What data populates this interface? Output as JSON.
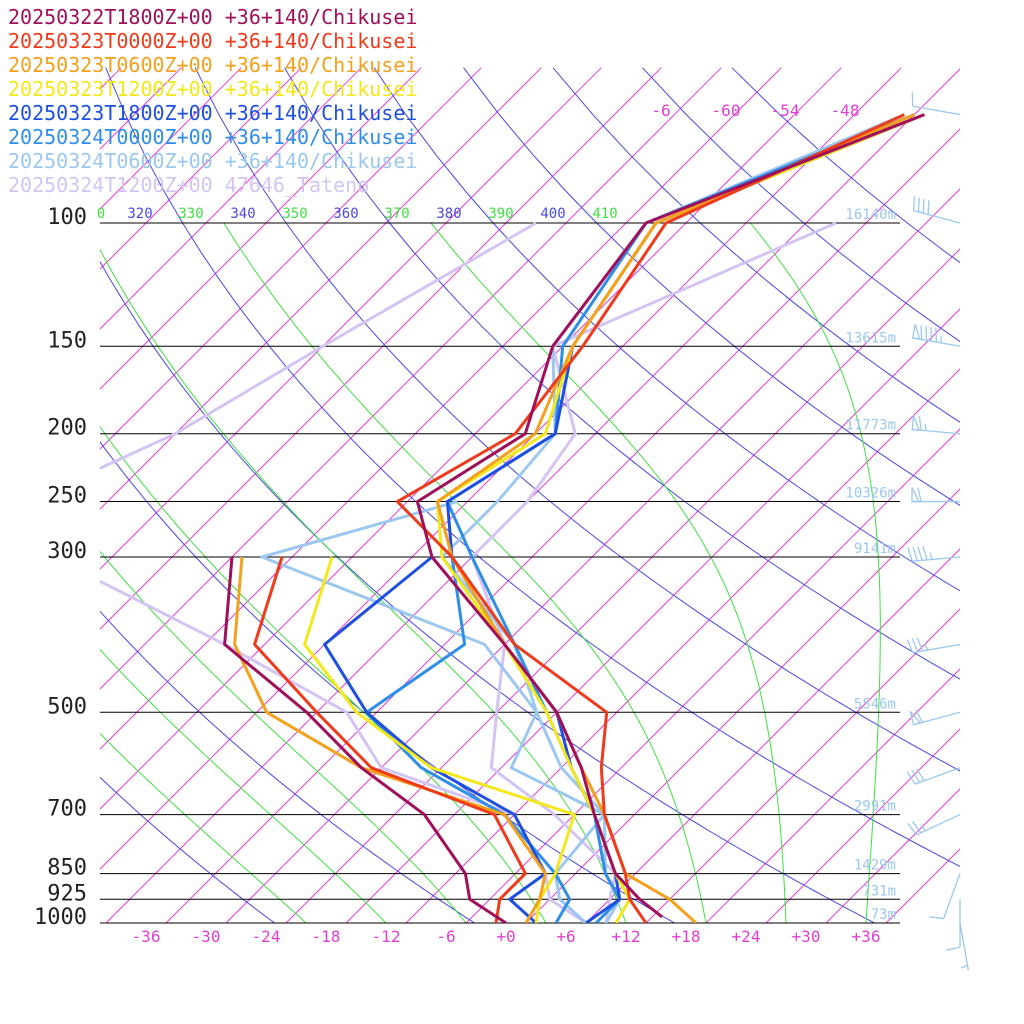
{
  "chart_data": {
    "type": "line",
    "title": "",
    "legend": {
      "placement": "top-left",
      "entries": [
        {
          "label": "20250322T1800Z+00 +36+140/Chikusei",
          "color": "#a0105a"
        },
        {
          "label": "20250323T0000Z+00 +36+140/Chikusei",
          "color": "#ef3a1c"
        },
        {
          "label": "20250323T0600Z+00 +36+140/Chikusei",
          "color": "#f4a01c"
        },
        {
          "label": "20250323T1200Z+00 +36+140/Chikusei",
          "color": "#f2e81a"
        },
        {
          "label": "20250323T1800Z+00 +36+140/Chikusei",
          "color": "#1f4fe0"
        },
        {
          "label": "20250324T0000Z+00 +36+140/Chikusei",
          "color": "#2f8ee8"
        },
        {
          "label": "20250324T0600Z+00 +36+140/Chikusei",
          "color": "#9cc8f0"
        },
        {
          "label": "20250324T1200Z+00 47646_Tateno",
          "color": "#d4c4f4"
        }
      ]
    },
    "pressure_axis": {
      "ticks": [
        1000,
        925,
        850,
        700,
        500,
        300,
        250,
        200,
        150,
        100
      ],
      "ticks_text": [
        "1000",
        "925",
        "850",
        "700",
        "500",
        "300",
        "250",
        "200",
        "150",
        "100"
      ]
    },
    "temperature_axis": {
      "ticks": [
        -36,
        -30,
        -24,
        -18,
        -12,
        -6,
        0,
        6,
        12,
        18,
        24,
        30,
        36
      ],
      "ticks_text": [
        "-36",
        "-30",
        "-24",
        "-18",
        "-12",
        "-6",
        "+0",
        "+6",
        "+12",
        "+18",
        "+24",
        "+30",
        "+36"
      ]
    },
    "upper_temperature_labels": [
      "-6",
      "-60",
      "-54",
      "-48"
    ],
    "theta_labels": [
      "0",
      "320",
      "330",
      "340",
      "350",
      "360",
      "370",
      "380",
      "390",
      "400",
      "410"
    ],
    "height_labels": [
      {
        "p": 100,
        "text": "16140m"
      },
      {
        "p": 150,
        "text": "13615m"
      },
      {
        "p": 200,
        "text": "11773m"
      },
      {
        "p": 250,
        "text": "10326m"
      },
      {
        "p": 300,
        "text": "9141m"
      },
      {
        "p": 500,
        "text": "5546m"
      },
      {
        "p": 700,
        "text": "2991m"
      },
      {
        "p": 850,
        "text": "1429m"
      },
      {
        "p": 925,
        "text": "731m"
      },
      {
        "p": 1000,
        "text": "73m"
      }
    ],
    "profile_type": "temperature_and_dewpoint",
    "series": [
      {
        "name": "20250322T1800Z+00 +36+140/Chikusei",
        "color": "#a0105a",
        "temperature": [
          [
            70,
            -39
          ],
          [
            100,
            -56
          ],
          [
            150,
            -53
          ],
          [
            200,
            -47
          ],
          [
            250,
            -51
          ],
          [
            300,
            -44
          ],
          [
            400,
            -28
          ],
          [
            500,
            -16
          ],
          [
            600,
            -8
          ],
          [
            700,
            -2
          ],
          [
            850,
            6
          ],
          [
            925,
            11
          ],
          [
            980,
            15
          ]
        ],
        "dewpoint": [
          [
            300,
            -64
          ],
          [
            400,
            -56
          ],
          [
            500,
            -41
          ],
          [
            600,
            -30
          ],
          [
            700,
            -19
          ],
          [
            850,
            -9
          ],
          [
            925,
            -6
          ],
          [
            1000,
            0
          ]
        ]
      },
      {
        "name": "20250323T0000Z+00 +36+140/Chikusei",
        "color": "#ef3a1c",
        "temperature": [
          [
            70,
            -41
          ],
          [
            100,
            -54
          ],
          [
            150,
            -50
          ],
          [
            200,
            -48
          ],
          [
            250,
            -53
          ],
          [
            300,
            -42
          ],
          [
            400,
            -27
          ],
          [
            500,
            -11
          ],
          [
            600,
            -6
          ],
          [
            700,
            -1
          ],
          [
            850,
            7
          ],
          [
            925,
            10
          ],
          [
            1000,
            14
          ]
        ],
        "dewpoint": [
          [
            300,
            -59
          ],
          [
            400,
            -53
          ],
          [
            500,
            -40
          ],
          [
            600,
            -29
          ],
          [
            700,
            -12
          ],
          [
            850,
            -3
          ],
          [
            925,
            -3
          ],
          [
            1000,
            -1
          ]
        ]
      },
      {
        "name": "20250323T0600Z+00 +36+140/Chikusei",
        "color": "#f4a01c",
        "temperature": [
          [
            70,
            -40
          ],
          [
            100,
            -55
          ],
          [
            150,
            -51
          ],
          [
            200,
            -46
          ],
          [
            250,
            -49
          ],
          [
            300,
            -42
          ],
          [
            400,
            -28
          ],
          [
            500,
            -16
          ],
          [
            600,
            -8
          ],
          [
            700,
            -1
          ],
          [
            850,
            7
          ],
          [
            925,
            14
          ],
          [
            1000,
            19
          ]
        ],
        "dewpoint": [
          [
            300,
            -63
          ],
          [
            400,
            -55
          ],
          [
            500,
            -45
          ],
          [
            600,
            -30
          ],
          [
            700,
            -11
          ],
          [
            850,
            -1
          ],
          [
            925,
            1
          ],
          [
            1000,
            2
          ]
        ]
      },
      {
        "name": "20250323T1200Z+00 +36+140/Chikusei",
        "color": "#f2e81a",
        "temperature": [
          [
            70,
            -39
          ],
          [
            100,
            -55
          ],
          [
            150,
            -51
          ],
          [
            200,
            -45
          ],
          [
            250,
            -49
          ],
          [
            300,
            -43
          ],
          [
            400,
            -28
          ],
          [
            500,
            -17
          ],
          [
            600,
            -9
          ],
          [
            700,
            -2
          ],
          [
            850,
            6
          ],
          [
            925,
            10
          ],
          [
            1000,
            11
          ]
        ],
        "dewpoint": [
          [
            300,
            -54
          ],
          [
            400,
            -48
          ],
          [
            500,
            -36
          ],
          [
            600,
            -23
          ],
          [
            700,
            -4
          ],
          [
            850,
            0
          ],
          [
            925,
            1
          ],
          [
            1000,
            3
          ]
        ]
      },
      {
        "name": "20250323T1800Z+00 +36+140/Chikusei",
        "color": "#1f4fe0",
        "temperature": [
          [
            70,
            -39
          ],
          [
            100,
            -55
          ],
          [
            150,
            -51
          ],
          [
            200,
            -44
          ],
          [
            250,
            -48
          ],
          [
            300,
            -42
          ],
          [
            400,
            -28
          ],
          [
            500,
            -16
          ],
          [
            600,
            -9
          ],
          [
            700,
            -2
          ],
          [
            850,
            6
          ],
          [
            925,
            9
          ],
          [
            1000,
            8
          ]
        ],
        "dewpoint": [
          [
            300,
            -44
          ],
          [
            400,
            -46
          ],
          [
            500,
            -35
          ],
          [
            600,
            -23
          ],
          [
            700,
            -10
          ],
          [
            850,
            -1
          ],
          [
            925,
            -2
          ],
          [
            1000,
            3
          ]
        ]
      },
      {
        "name": "20250324T0000Z+00 +36+140/Chikusei",
        "color": "#2f8ee8",
        "temperature": [
          [
            70,
            -40
          ],
          [
            100,
            -56
          ],
          [
            150,
            -52
          ],
          [
            200,
            -44
          ],
          [
            250,
            -48
          ],
          [
            300,
            -40
          ],
          [
            400,
            -27
          ],
          [
            500,
            -17
          ],
          [
            600,
            -9
          ],
          [
            700,
            -2
          ],
          [
            850,
            5
          ],
          [
            925,
            9
          ],
          [
            1000,
            9
          ]
        ],
        "dewpoint": [
          [
            300,
            -42
          ],
          [
            400,
            -32
          ],
          [
            500,
            -35
          ],
          [
            600,
            -24
          ],
          [
            700,
            -11
          ],
          [
            850,
            0
          ],
          [
            925,
            4
          ],
          [
            1000,
            5
          ]
        ]
      },
      {
        "name": "20250324T0600Z+00 +36+140/Chikusei",
        "color": "#9cc8f0",
        "temperature": [
          [
            70,
            -41
          ],
          [
            100,
            -56
          ],
          [
            150,
            -53
          ],
          [
            200,
            -44
          ],
          [
            250,
            -43
          ],
          [
            300,
            -43
          ],
          [
            400,
            -27
          ],
          [
            500,
            -18
          ],
          [
            600,
            -10
          ],
          [
            700,
            -1
          ],
          [
            850,
            5
          ],
          [
            925,
            9
          ],
          [
            1000,
            10
          ]
        ],
        "dewpoint": [
          [
            250,
            -47
          ],
          [
            300,
            -61
          ],
          [
            400,
            -30
          ],
          [
            500,
            -18
          ],
          [
            600,
            -15
          ],
          [
            700,
            -1
          ],
          [
            850,
            0
          ],
          [
            925,
            3
          ],
          [
            1000,
            8
          ]
        ]
      },
      {
        "name": "20250324T1200Z+00 47646_Tateno",
        "color": "#d4c4f4",
        "temperature": [
          [
            100,
            -37
          ],
          [
            150,
            -53
          ],
          [
            200,
            -42
          ],
          [
            250,
            -40
          ],
          [
            300,
            -40
          ],
          [
            400,
            -28
          ],
          [
            500,
            -22
          ],
          [
            600,
            -17
          ],
          [
            700,
            -6
          ],
          [
            850,
            6
          ],
          [
            925,
            8
          ],
          [
            1000,
            10
          ]
        ],
        "dewpoint": [
          [
            100,
            -67
          ],
          [
            150,
            -76
          ],
          [
            200,
            -82
          ],
          [
            250,
            -90
          ],
          [
            300,
            -82
          ],
          [
            400,
            -56
          ],
          [
            500,
            -37
          ],
          [
            600,
            -28
          ],
          [
            700,
            -10
          ],
          [
            850,
            -1
          ],
          [
            925,
            2
          ],
          [
            1000,
            8
          ]
        ]
      }
    ],
    "wind_barbs": [
      {
        "p": 70,
        "dir": 280,
        "kt": 10
      },
      {
        "p": 100,
        "dir": 285,
        "kt": 40
      },
      {
        "p": 150,
        "dir": 280,
        "kt": 95
      },
      {
        "p": 200,
        "dir": 275,
        "kt": 65
      },
      {
        "p": 250,
        "dir": 270,
        "kt": 60
      },
      {
        "p": 300,
        "dir": 265,
        "kt": 45
      },
      {
        "p": 400,
        "dir": 260,
        "kt": 35
      },
      {
        "p": 500,
        "dir": 255,
        "kt": 60
      },
      {
        "p": 600,
        "dir": 250,
        "kt": 30
      },
      {
        "p": 700,
        "dir": 245,
        "kt": 25
      },
      {
        "p": 850,
        "dir": 200,
        "kt": 10
      },
      {
        "p": 925,
        "dir": 180,
        "kt": 10
      },
      {
        "p": 1000,
        "dir": 170,
        "kt": 5
      }
    ],
    "colors": {
      "isotherm": "#e040d0",
      "dry_adiabat": "#4848e8",
      "moist_adiabat": "#40e040",
      "isobar": "#000000",
      "pressure_label": "#222222",
      "temperature_label": "#e040d0",
      "height_label": "#9cc8f0",
      "barb": "#9cc8f0"
    },
    "grid": true
  }
}
